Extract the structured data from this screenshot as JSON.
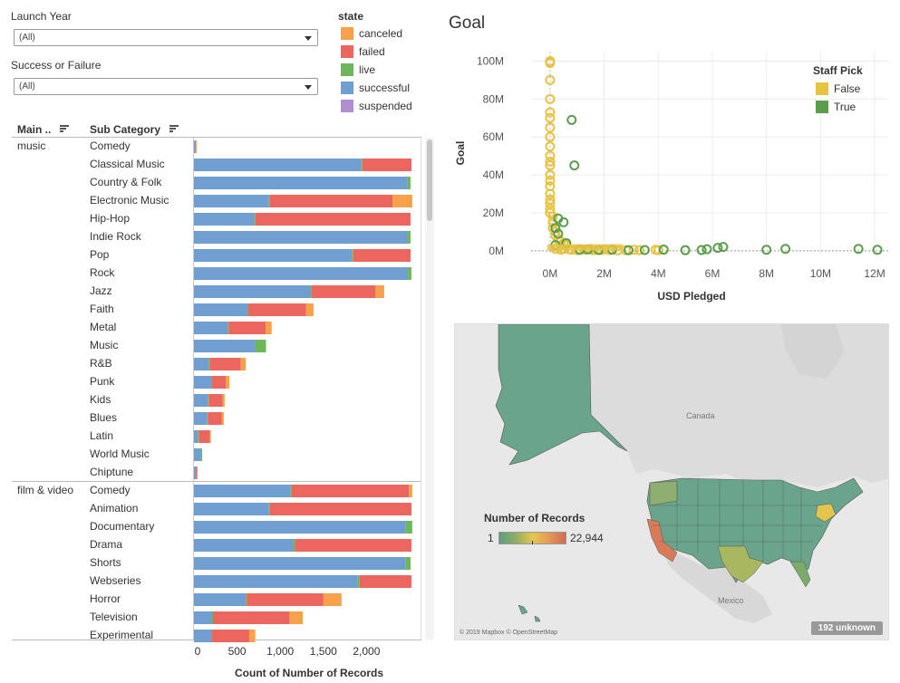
{
  "filters": {
    "launch_year": {
      "label": "Launch Year",
      "value": "(All)"
    },
    "success_failure": {
      "label": "Success or Failure",
      "value": "(All)"
    }
  },
  "state_legend": {
    "title": "state",
    "items": [
      {
        "label": "canceled",
        "color": "#F7A24B"
      },
      {
        "label": "failed",
        "color": "#EC6660"
      },
      {
        "label": "live",
        "color": "#6DB65A"
      },
      {
        "label": "successful",
        "color": "#6F9ED1"
      },
      {
        "label": "suspended",
        "color": "#B18ED0"
      }
    ]
  },
  "bar_table": {
    "col_main": "Main ..",
    "col_sub": "Sub Category",
    "x_axis_label": "Count of Number of Records",
    "groups": [
      {
        "name": "music",
        "rows": [
          "Comedy",
          "Classical Music",
          "Country & Folk",
          "Electronic Music",
          "Hip-Hop",
          "Indie Rock",
          "Pop",
          "Rock",
          "Jazz",
          "Faith",
          "Metal",
          "Music",
          "R&B",
          "Punk",
          "Kids",
          "Blues",
          "Latin",
          "World Music",
          "Chiptune"
        ]
      },
      {
        "name": "film & video",
        "rows": [
          "Comedy",
          "Animation",
          "Documentary",
          "Drama",
          "Shorts",
          "Webseries",
          "Horror",
          "Television",
          "Experimental"
        ]
      }
    ]
  },
  "goal_chart": {
    "title": "Goal",
    "legend_title": "Staff Pick",
    "legend": [
      {
        "label": "False",
        "color": "#E6C343"
      },
      {
        "label": "True",
        "color": "#5A9E4B"
      }
    ]
  },
  "map": {
    "legend_title": "Number of Records",
    "min_label": "1",
    "max_label": "22,944",
    "country_label_canada": "Canada",
    "country_label_mexico": "Mexico",
    "attribution": "© 2019 Mapbox © OpenStreetMap",
    "unknown": "192 unknown"
  },
  "chart_data": [
    {
      "type": "bar",
      "stacked": true,
      "orientation": "horizontal",
      "xlabel": "Count of Number of Records",
      "xlim": [
        0,
        2500
      ],
      "x_ticks": [
        "0",
        "500",
        "1,000",
        "1,500",
        "2,000"
      ],
      "series_order": [
        "successful",
        "live",
        "failed",
        "canceled",
        "suspended"
      ],
      "groups": [
        {
          "name": "music",
          "categories": [
            {
              "name": "Comedy",
              "successful": 12,
              "live": 0,
              "failed": 10,
              "canceled": 5,
              "suspended": 0
            },
            {
              "name": "Classical Music",
              "successful": 1940,
              "live": 5,
              "failed": 570,
              "canceled": 0,
              "suspended": 0
            },
            {
              "name": "Country & Folk",
              "successful": 2470,
              "live": 40,
              "failed": 0,
              "canceled": 0,
              "suspended": 0
            },
            {
              "name": "Electronic Music",
              "successful": 870,
              "live": 5,
              "failed": 1420,
              "canceled": 230,
              "suspended": 0
            },
            {
              "name": "Hip-Hop",
              "successful": 700,
              "live": 10,
              "failed": 1800,
              "canceled": 0,
              "suspended": 0
            },
            {
              "name": "Indie Rock",
              "successful": 2480,
              "live": 30,
              "failed": 0,
              "canceled": 0,
              "suspended": 0
            },
            {
              "name": "Pop",
              "successful": 1830,
              "live": 10,
              "failed": 670,
              "canceled": 0,
              "suspended": 0
            },
            {
              "name": "Rock",
              "successful": 2480,
              "live": 40,
              "failed": 0,
              "canceled": 0,
              "suspended": 0
            },
            {
              "name": "Jazz",
              "successful": 1350,
              "live": 15,
              "failed": 740,
              "canceled": 100,
              "suspended": 0
            },
            {
              "name": "Faith",
              "successful": 620,
              "live": 10,
              "failed": 670,
              "canceled": 85,
              "suspended": 0
            },
            {
              "name": "Metal",
              "successful": 390,
              "live": 5,
              "failed": 430,
              "canceled": 70,
              "suspended": 0
            },
            {
              "name": "Music",
              "successful": 710,
              "live": 125,
              "failed": 0,
              "canceled": 0,
              "suspended": 0
            },
            {
              "name": "R&B",
              "successful": 170,
              "live": 5,
              "failed": 360,
              "canceled": 60,
              "suspended": 0
            },
            {
              "name": "Punk",
              "successful": 200,
              "live": 5,
              "failed": 160,
              "canceled": 40,
              "suspended": 0
            },
            {
              "name": "Kids",
              "successful": 160,
              "live": 5,
              "failed": 160,
              "canceled": 25,
              "suspended": 0
            },
            {
              "name": "Blues",
              "successful": 150,
              "live": 5,
              "failed": 160,
              "canceled": 25,
              "suspended": 0
            },
            {
              "name": "Latin",
              "successful": 45,
              "live": 5,
              "failed": 130,
              "canceled": 10,
              "suspended": 0
            },
            {
              "name": "World Music",
              "successful": 80,
              "live": 15,
              "failed": 0,
              "canceled": 0,
              "suspended": 0
            },
            {
              "name": "Chiptune",
              "successful": 25,
              "live": 0,
              "failed": 15,
              "canceled": 0,
              "suspended": 0
            }
          ]
        },
        {
          "name": "film & video",
          "categories": [
            {
              "name": "Comedy",
              "successful": 1120,
              "live": 5,
              "failed": 1360,
              "canceled": 40,
              "suspended": 0
            },
            {
              "name": "Animation",
              "successful": 870,
              "live": 5,
              "failed": 1640,
              "canceled": 0,
              "suspended": 0
            },
            {
              "name": "Documentary",
              "successful": 2450,
              "live": 80,
              "failed": 0,
              "canceled": 0,
              "suspended": 0
            },
            {
              "name": "Drama",
              "successful": 1150,
              "live": 20,
              "failed": 1350,
              "canceled": 0,
              "suspended": 0
            },
            {
              "name": "Shorts",
              "successful": 2450,
              "live": 60,
              "failed": 0,
              "canceled": 0,
              "suspended": 0
            },
            {
              "name": "Webseries",
              "successful": 1900,
              "live": 20,
              "failed": 600,
              "canceled": 0,
              "suspended": 0
            },
            {
              "name": "Horror",
              "successful": 600,
              "live": 5,
              "failed": 890,
              "canceled": 210,
              "suspended": 0
            },
            {
              "name": "Television",
              "successful": 210,
              "live": 5,
              "failed": 890,
              "canceled": 150,
              "suspended": 0
            },
            {
              "name": "Experimental",
              "successful": 200,
              "live": 5,
              "failed": 430,
              "canceled": 70,
              "suspended": 0
            }
          ]
        }
      ]
    },
    {
      "type": "scatter",
      "title": "Goal",
      "xlabel": "USD Pledged",
      "ylabel": "Goal",
      "xlim": [
        -0.7,
        12.5
      ],
      "ylim": [
        -2,
        105
      ],
      "x_ticks": [
        "0M",
        "2M",
        "4M",
        "6M",
        "8M",
        "10M",
        "12M"
      ],
      "y_ticks": [
        "0M",
        "20M",
        "40M",
        "60M",
        "80M",
        "100M"
      ],
      "legend_title": "Staff Pick",
      "series": [
        {
          "name": "False",
          "color": "#E6C343",
          "points": [
            [
              0,
              100
            ],
            [
              0,
              99
            ],
            [
              0,
              90
            ],
            [
              0,
              80
            ],
            [
              0,
              73
            ],
            [
              0,
              70
            ],
            [
              0,
              65
            ],
            [
              0,
              60
            ],
            [
              0,
              55
            ],
            [
              0,
              50
            ],
            [
              0,
              47
            ],
            [
              0,
              45
            ],
            [
              0,
              40
            ],
            [
              0,
              37
            ],
            [
              0,
              34
            ],
            [
              0,
              30
            ],
            [
              0,
              27
            ],
            [
              0,
              25
            ],
            [
              0,
              22
            ],
            [
              0,
              20
            ],
            [
              0.1,
              18
            ],
            [
              0.1,
              15
            ],
            [
              0.1,
              12
            ],
            [
              0.2,
              10
            ],
            [
              0.2,
              8
            ],
            [
              0.3,
              6
            ],
            [
              0.4,
              5
            ],
            [
              0.5,
              4
            ],
            [
              0.6,
              3
            ],
            [
              0.3,
              2
            ],
            [
              0.5,
              1
            ],
            [
              0.8,
              0.5
            ],
            [
              1,
              0.3
            ],
            [
              1.3,
              0.5
            ],
            [
              1.6,
              0.3
            ],
            [
              1.9,
              0.4
            ],
            [
              2.2,
              0.3
            ],
            [
              2.5,
              0.2
            ],
            [
              2.8,
              0.3
            ],
            [
              3.1,
              0.5
            ],
            [
              3.3,
              0.3
            ],
            [
              3.9,
              0.5
            ],
            [
              4.0,
              0.3
            ],
            [
              0.2,
              1
            ],
            [
              0.4,
              0.5
            ],
            [
              0.7,
              0.8
            ],
            [
              1.1,
              0.6
            ],
            [
              1.5,
              0.9
            ],
            [
              2.0,
              0.7
            ]
          ]
        },
        {
          "name": "True",
          "color": "#5A9E4B",
          "points": [
            [
              0.8,
              69
            ],
            [
              0.9,
              45
            ],
            [
              0.3,
              17
            ],
            [
              0.5,
              15
            ],
            [
              0.2,
              12
            ],
            [
              0.3,
              9
            ],
            [
              0.6,
              4
            ],
            [
              0.2,
              3
            ],
            [
              1.1,
              0.5
            ],
            [
              1.4,
              0.7
            ],
            [
              1.8,
              0.4
            ],
            [
              2.3,
              0.6
            ],
            [
              2.9,
              0.3
            ],
            [
              3.5,
              0.4
            ],
            [
              4.2,
              0.6
            ],
            [
              5.0,
              0.3
            ],
            [
              5.6,
              0.4
            ],
            [
              5.8,
              0.8
            ],
            [
              6.2,
              1.5
            ],
            [
              6.4,
              2
            ],
            [
              8.0,
              0.5
            ],
            [
              8.7,
              1
            ],
            [
              11.4,
              1
            ],
            [
              12.1,
              0.5
            ]
          ]
        }
      ]
    }
  ]
}
